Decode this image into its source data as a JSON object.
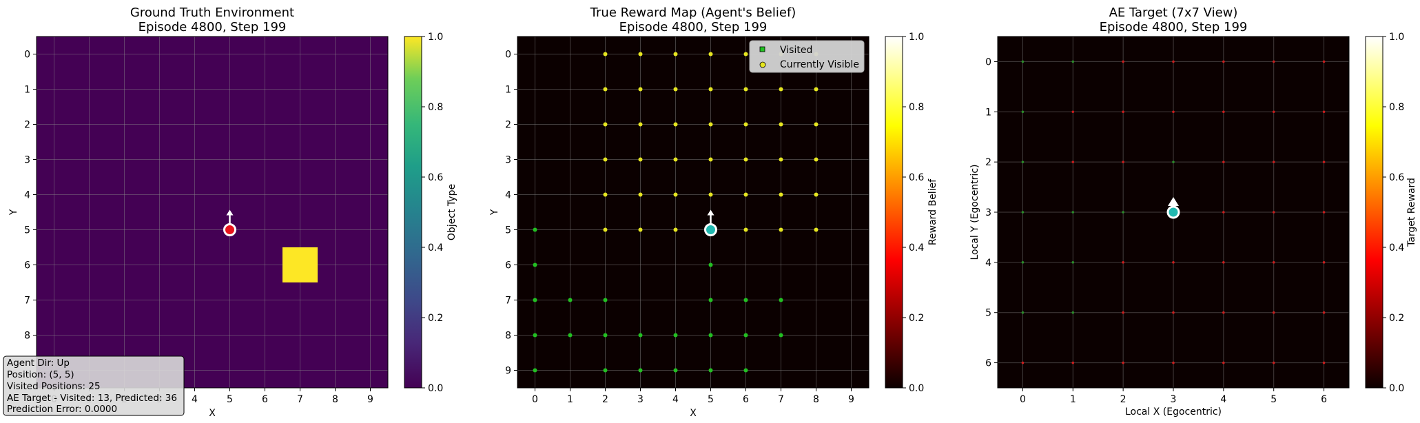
{
  "chart_data": [
    {
      "type": "heatmap",
      "title_lines": [
        "Ground Truth Environment",
        "Episode 4800, Step 199"
      ],
      "xlabel": "X",
      "ylabel": "Y",
      "x_ticks": [
        "0",
        "1",
        "2",
        "3",
        "4",
        "5",
        "6",
        "7",
        "8",
        "9"
      ],
      "y_ticks": [
        "0",
        "1",
        "2",
        "3",
        "4",
        "5",
        "6",
        "7",
        "8"
      ],
      "grid_size": [
        10,
        10
      ],
      "background_value": 0.0,
      "cells": [
        {
          "x": 7,
          "y": 6,
          "value": 1.0
        }
      ],
      "agent": {
        "x": 5,
        "y": 5,
        "direction": "up",
        "marker_color": "#e8151b"
      },
      "colorbar": {
        "label": "Object Type",
        "colormap": "viridis",
        "range": [
          0,
          1
        ],
        "ticks": [
          "0.0",
          "0.2",
          "0.4",
          "0.6",
          "0.8",
          "1.0"
        ]
      },
      "grid": true,
      "info_box": [
        "Agent Dir: Up",
        "Position: (5, 5)",
        "Visited Positions: 25",
        "AE Target - Visited: 13, Predicted: 36",
        "Prediction Error: 0.0000"
      ]
    },
    {
      "type": "scatter",
      "title_lines": [
        "True Reward Map (Agent's Belief)",
        "Episode 4800, Step 199"
      ],
      "xlabel": "X",
      "ylabel": "Y",
      "x_ticks": [
        "0",
        "1",
        "2",
        "3",
        "4",
        "5",
        "6",
        "7",
        "8",
        "9"
      ],
      "y_ticks": [
        "0",
        "1",
        "2",
        "3",
        "4",
        "5",
        "6",
        "7",
        "8",
        "9"
      ],
      "grid_size": [
        10,
        10
      ],
      "visited_color": "#22c022",
      "visible_color": "#e6e620",
      "visited_points": [
        [
          0,
          5
        ],
        [
          0,
          6
        ],
        [
          0,
          7
        ],
        [
          0,
          8
        ],
        [
          0,
          9
        ],
        [
          1,
          7
        ],
        [
          1,
          8
        ],
        [
          2,
          7
        ],
        [
          2,
          8
        ],
        [
          2,
          9
        ],
        [
          3,
          8
        ],
        [
          3,
          9
        ],
        [
          4,
          8
        ],
        [
          4,
          9
        ],
        [
          5,
          6
        ],
        [
          5,
          7
        ],
        [
          5,
          8
        ],
        [
          5,
          9
        ],
        [
          6,
          7
        ],
        [
          6,
          8
        ],
        [
          6,
          9
        ],
        [
          7,
          7
        ],
        [
          7,
          8
        ]
      ],
      "visible_points": [
        [
          2,
          0
        ],
        [
          3,
          0
        ],
        [
          4,
          0
        ],
        [
          5,
          0
        ],
        [
          6,
          0
        ],
        [
          7,
          0
        ],
        [
          8,
          0
        ],
        [
          2,
          1
        ],
        [
          3,
          1
        ],
        [
          4,
          1
        ],
        [
          5,
          1
        ],
        [
          6,
          1
        ],
        [
          7,
          1
        ],
        [
          8,
          1
        ],
        [
          2,
          2
        ],
        [
          3,
          2
        ],
        [
          4,
          2
        ],
        [
          5,
          2
        ],
        [
          6,
          2
        ],
        [
          7,
          2
        ],
        [
          8,
          2
        ],
        [
          2,
          3
        ],
        [
          3,
          3
        ],
        [
          4,
          3
        ],
        [
          5,
          3
        ],
        [
          6,
          3
        ],
        [
          7,
          3
        ],
        [
          8,
          3
        ],
        [
          2,
          4
        ],
        [
          3,
          4
        ],
        [
          4,
          4
        ],
        [
          5,
          4
        ],
        [
          6,
          4
        ],
        [
          7,
          4
        ],
        [
          8,
          4
        ],
        [
          2,
          5
        ],
        [
          3,
          5
        ],
        [
          4,
          5
        ],
        [
          6,
          5
        ],
        [
          7,
          5
        ],
        [
          8,
          5
        ]
      ],
      "agent": {
        "x": 5,
        "y": 5,
        "direction": "up",
        "marker_color": "#20b8b0"
      },
      "legend": {
        "position": "top-right",
        "entries": [
          "Visited",
          "Currently Visible"
        ]
      },
      "colorbar": {
        "label": "Reward Belief",
        "colormap": "hot",
        "range": [
          0,
          1
        ],
        "ticks": [
          "0.0",
          "0.2",
          "0.4",
          "0.6",
          "0.8",
          "1.0"
        ]
      },
      "grid": true
    },
    {
      "type": "scatter",
      "title_lines": [
        "AE Target (7x7 View)",
        "Episode 4800, Step 199"
      ],
      "xlabel": "Local X (Egocentric)",
      "ylabel": "Local Y (Egocentric)",
      "x_ticks": [
        "0",
        "1",
        "2",
        "3",
        "4",
        "5",
        "6"
      ],
      "y_ticks": [
        "0",
        "1",
        "2",
        "3",
        "4",
        "5",
        "6"
      ],
      "grid_size": [
        7,
        7
      ],
      "green_color": "#2a8a2a",
      "red_color": "#c81e1e",
      "green_points": [
        [
          0,
          0
        ],
        [
          1,
          0
        ],
        [
          0,
          1
        ],
        [
          0,
          2
        ],
        [
          3,
          2
        ],
        [
          0,
          3
        ],
        [
          1,
          3
        ],
        [
          2,
          3
        ],
        [
          0,
          4
        ],
        [
          1,
          4
        ],
        [
          0,
          5
        ],
        [
          1,
          5
        ]
      ],
      "agent": {
        "x": 3,
        "y": 3,
        "direction": "up",
        "marker_color": "#20b8b0"
      },
      "colorbar": {
        "label": "Target Reward",
        "colormap": "hot",
        "range": [
          0,
          1
        ],
        "ticks": [
          "0.0",
          "0.2",
          "0.4",
          "0.6",
          "0.8",
          "1.0"
        ]
      },
      "grid": true
    }
  ]
}
